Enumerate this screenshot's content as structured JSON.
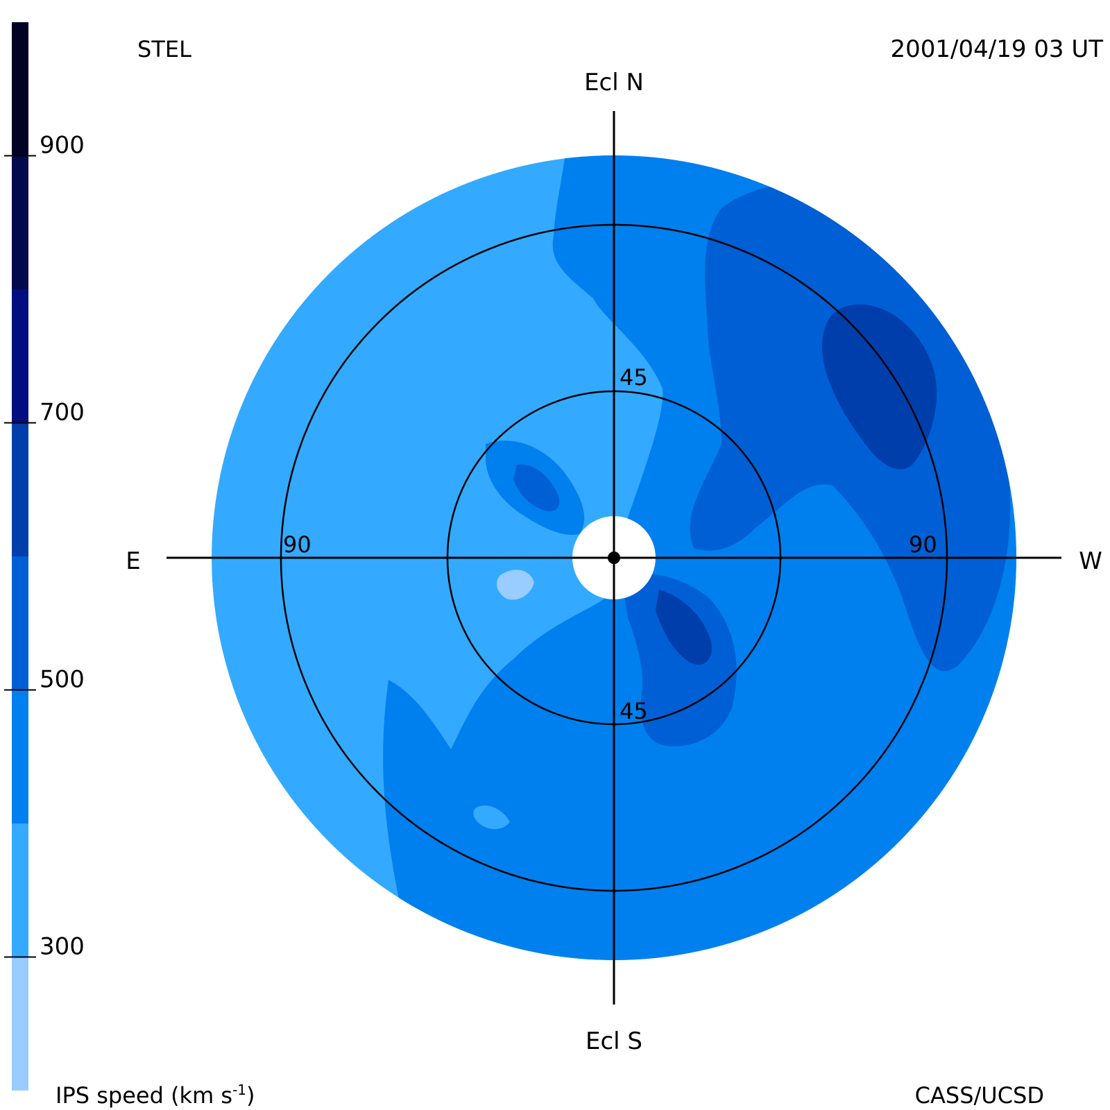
{
  "header": {
    "left_label": "STEL",
    "right_label": "2001/04/19 03 UT"
  },
  "footer": {
    "colorbar_label": "IPS speed (km s",
    "colorbar_label_sup": "-1",
    "colorbar_label_close": ")",
    "credit": "CASS/UCSD"
  },
  "compass": {
    "north": "Ecl N",
    "south": "Ecl S",
    "east": "E",
    "west": "W"
  },
  "chart_data": {
    "type": "heatmap",
    "projection": "polar sky map (elongation from Sun)",
    "quantity": "IPS speed",
    "units": "km s-1",
    "colorbar": {
      "range": [
        200,
        1000
      ],
      "ticks": [
        300,
        500,
        700,
        900
      ],
      "bins": [
        {
          "from": 200,
          "to": 300,
          "color": "#99ccff"
        },
        {
          "from": 300,
          "to": 400,
          "color": "#33aaff"
        },
        {
          "from": 400,
          "to": 500,
          "color": "#0080ee"
        },
        {
          "from": 500,
          "to": 600,
          "color": "#005fd4"
        },
        {
          "from": 600,
          "to": 700,
          "color": "#003eab"
        },
        {
          "from": 700,
          "to": 800,
          "color": "#000e80"
        },
        {
          "from": 800,
          "to": 900,
          "color": "#000a4d"
        },
        {
          "from": 900,
          "to": 1000,
          "color": "#000324"
        }
      ]
    },
    "elongation_rings": [
      {
        "value": 45,
        "labels": [
          "45",
          "45"
        ]
      },
      {
        "value": 90,
        "labels": [
          "90",
          "90"
        ]
      }
    ],
    "map_extent_deg": 120,
    "regions": [
      {
        "name": "eastern sky",
        "speed_bin": [
          300,
          400
        ]
      },
      {
        "name": "western and southern sky",
        "speed_bin": [
          400,
          500
        ]
      },
      {
        "name": "north-western lobe",
        "speed_bin": [
          500,
          600
        ]
      },
      {
        "name": "north-western core",
        "speed_bin": [
          600,
          700
        ]
      },
      {
        "name": "inner north-east lobe",
        "speed_bin": [
          500,
          600
        ]
      },
      {
        "name": "inner south-west lobe",
        "speed_bin": [
          600,
          700
        ]
      },
      {
        "name": "small low-speed patches",
        "speed_bin": [
          200,
          300
        ]
      }
    ]
  }
}
